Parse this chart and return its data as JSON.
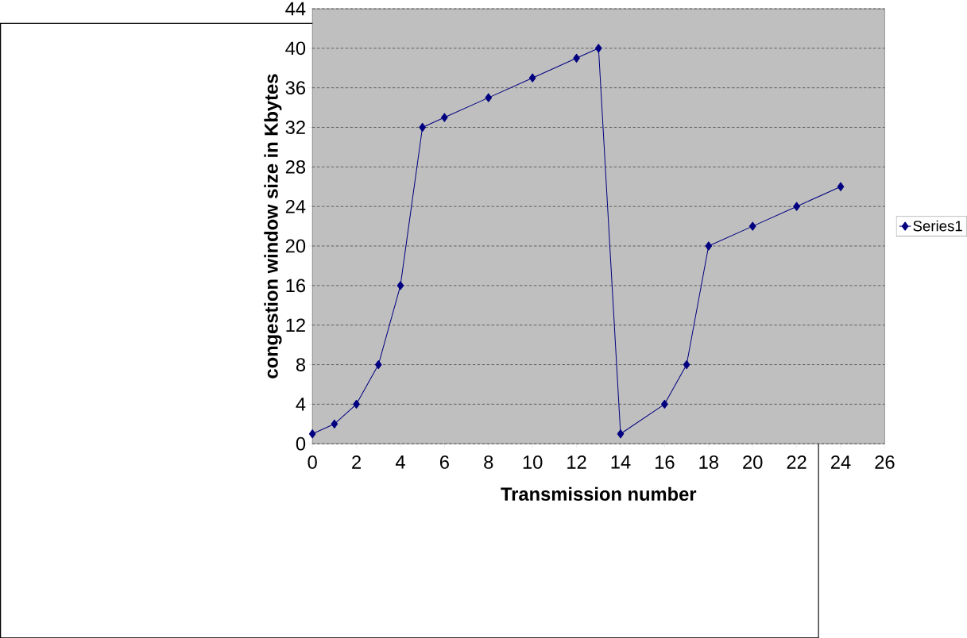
{
  "chart_data": {
    "type": "line",
    "xlabel": "Transmission number",
    "ylabel": "congestion window size in Kbytes",
    "xlim": [
      0,
      26
    ],
    "ylim": [
      0,
      44
    ],
    "xticks": [
      0,
      2,
      4,
      6,
      8,
      10,
      12,
      14,
      16,
      18,
      20,
      22,
      24,
      26
    ],
    "yticks": [
      0,
      4,
      8,
      12,
      16,
      20,
      24,
      28,
      32,
      36,
      40,
      44
    ],
    "grid": "y",
    "legend": "right",
    "marker": "diamond",
    "line_style": "solid",
    "series": [
      {
        "name": "Series1",
        "color": "#000080",
        "x": [
          0,
          1,
          2,
          3,
          4,
          5,
          6,
          8,
          10,
          12,
          13,
          14,
          16,
          17,
          18,
          20,
          22,
          24
        ],
        "values": [
          1,
          2,
          4,
          8,
          16,
          32,
          33,
          35,
          37,
          39,
          40,
          1,
          4,
          8,
          20,
          22,
          24,
          26
        ]
      }
    ]
  }
}
